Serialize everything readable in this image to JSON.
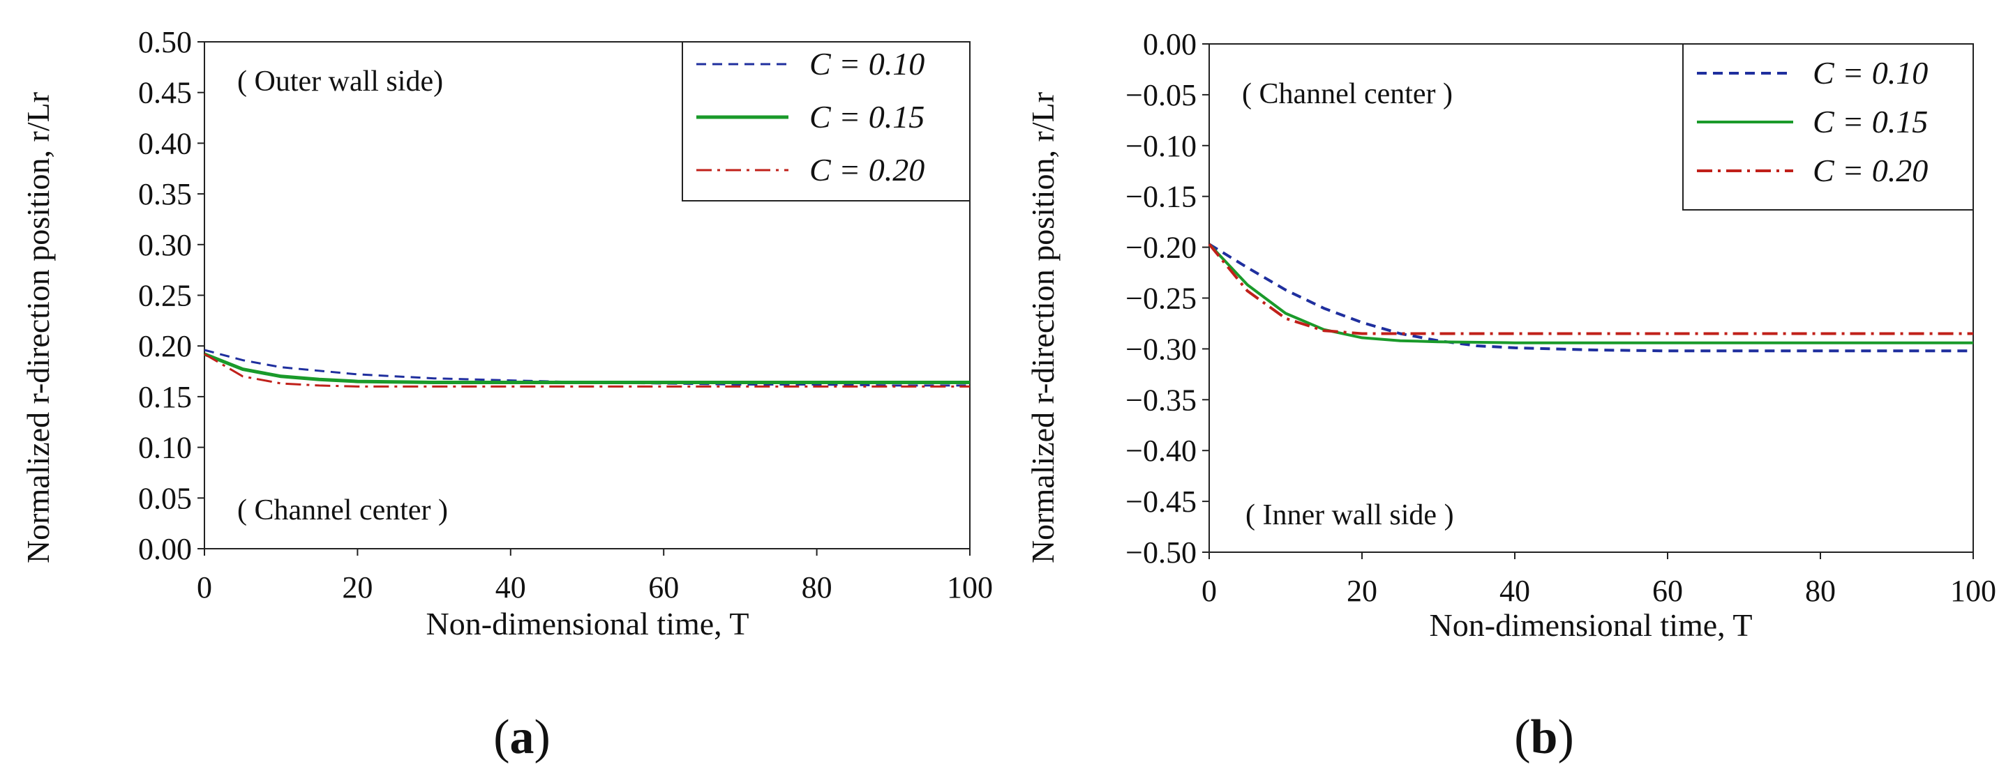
{
  "chart_data": [
    {
      "type": "line",
      "panel_label": "(a)",
      "panel_letter": "a",
      "xlabel": "Non-dimensional time, T",
      "ylabel": "Normalized r-direction position, r/Lr",
      "xlim": [
        0,
        100
      ],
      "ylim": [
        0.0,
        0.5
      ],
      "xticks": [
        "0",
        "20",
        "40",
        "60",
        "80",
        "100"
      ],
      "yticks": [
        "0.00",
        "0.05",
        "0.10",
        "0.15",
        "0.20",
        "0.25",
        "0.30",
        "0.35",
        "0.40",
        "0.45",
        "0.50"
      ],
      "legend_position": "top-right",
      "annotations": [
        "( Outer wall side)",
        "( Channel center )"
      ],
      "series": [
        {
          "name": "C = 0.10",
          "color": "#1f2f9e",
          "style": "dashed",
          "x": [
            0,
            5,
            10,
            20,
            30,
            40,
            50,
            60,
            70,
            80,
            90,
            100
          ],
          "y": [
            0.196,
            0.186,
            0.179,
            0.172,
            0.168,
            0.166,
            0.164,
            0.163,
            0.162,
            0.162,
            0.161,
            0.161
          ]
        },
        {
          "name": "C = 0.15",
          "color": "#1a9a2a",
          "style": "solid",
          "x": [
            0,
            5,
            10,
            15,
            20,
            30,
            40,
            50,
            60,
            70,
            80,
            90,
            100
          ],
          "y": [
            0.192,
            0.177,
            0.17,
            0.167,
            0.165,
            0.164,
            0.164,
            0.164,
            0.164,
            0.164,
            0.164,
            0.164,
            0.164
          ]
        },
        {
          "name": "C = 0.20",
          "color": "#c0201a",
          "style": "dashdot",
          "x": [
            0,
            5,
            10,
            15,
            20,
            30,
            40,
            60,
            80,
            100
          ],
          "y": [
            0.192,
            0.17,
            0.163,
            0.161,
            0.16,
            0.16,
            0.16,
            0.16,
            0.16,
            0.16
          ]
        }
      ]
    },
    {
      "type": "line",
      "panel_label": "(b)",
      "panel_letter": "b",
      "xlabel": "Non-dimensional time, T",
      "ylabel": "Normalized r-direction position, r/Lr",
      "xlim": [
        0,
        100
      ],
      "ylim": [
        -0.5,
        0.0
      ],
      "xticks": [
        "0",
        "20",
        "40",
        "60",
        "80",
        "100"
      ],
      "yticks": [
        "−0.50",
        "−0.45",
        "−0.40",
        "−0.35",
        "−0.30",
        "−0.25",
        "−0.20",
        "−0.15",
        "−0.10",
        "−0.05",
        "0.00"
      ],
      "legend_position": "top-right",
      "annotations": [
        "( Channel center )",
        "( Inner wall side )"
      ],
      "series": [
        {
          "name": "C = 0.10",
          "color": "#1f2f9e",
          "style": "dashed",
          "x": [
            0,
            5,
            10,
            15,
            20,
            25,
            30,
            35,
            40,
            50,
            60,
            80,
            100
          ],
          "y": [
            -0.197,
            -0.22,
            -0.242,
            -0.26,
            -0.274,
            -0.285,
            -0.292,
            -0.297,
            -0.299,
            -0.301,
            -0.302,
            -0.302,
            -0.302
          ]
        },
        {
          "name": "C = 0.15",
          "color": "#1a9a2a",
          "style": "solid",
          "x": [
            0,
            5,
            10,
            15,
            20,
            25,
            30,
            40,
            60,
            80,
            100
          ],
          "y": [
            -0.197,
            -0.237,
            -0.265,
            -0.281,
            -0.289,
            -0.292,
            -0.293,
            -0.294,
            -0.294,
            -0.294,
            -0.294
          ]
        },
        {
          "name": "C = 0.20",
          "color": "#c0201a",
          "style": "dashdot",
          "x": [
            0,
            5,
            10,
            15,
            20,
            25,
            30,
            40,
            60,
            80,
            100
          ],
          "y": [
            -0.197,
            -0.243,
            -0.27,
            -0.282,
            -0.285,
            -0.285,
            -0.285,
            -0.285,
            -0.285,
            -0.285,
            -0.285
          ]
        }
      ]
    }
  ]
}
